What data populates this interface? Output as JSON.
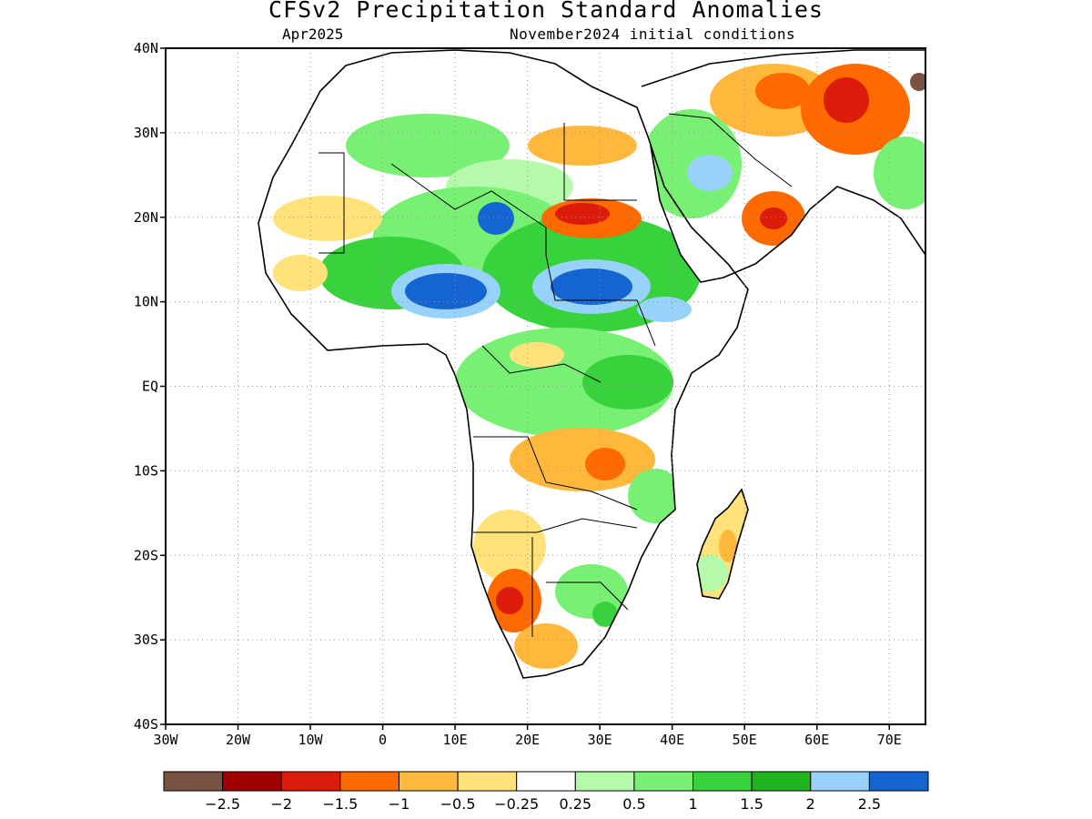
{
  "header": {
    "title": "CFSv2 Precipitation Standard Anomalies",
    "valid_month": "Apr2025",
    "initial_conditions": "November2024 initial conditions"
  },
  "map": {
    "lon_range": [
      -30,
      75
    ],
    "lat_range": [
      -40,
      40
    ],
    "x_tick_labels": [
      "30W",
      "20W",
      "10W",
      "0",
      "10E",
      "20E",
      "30E",
      "40E",
      "50E",
      "60E",
      "70E"
    ],
    "x_tick_values": [
      -30,
      -20,
      -10,
      0,
      10,
      20,
      30,
      40,
      50,
      60,
      70
    ],
    "y_tick_labels": [
      "40N",
      "30N",
      "20N",
      "10N",
      "EQ",
      "10S",
      "20S",
      "30S",
      "40S"
    ],
    "y_tick_values": [
      40,
      30,
      20,
      10,
      0,
      -10,
      -20,
      -30,
      -40
    ],
    "gridlines": "dotted"
  },
  "colorbar": {
    "colors": [
      "#7a5244",
      "#a00000",
      "#dc1c0a",
      "#ff6a00",
      "#ffb83c",
      "#ffe27a",
      "#ffffff",
      "#b4faaa",
      "#78f073",
      "#37d23c",
      "#1eb41e",
      "#96d2fa",
      "#1464d2"
    ],
    "labels": [
      "−2.5",
      "−2",
      "−1.5",
      "−1",
      "−0.5",
      "−0.25",
      "0.25",
      "0.5",
      "1",
      "1.5",
      "2",
      "2.5"
    ]
  }
}
